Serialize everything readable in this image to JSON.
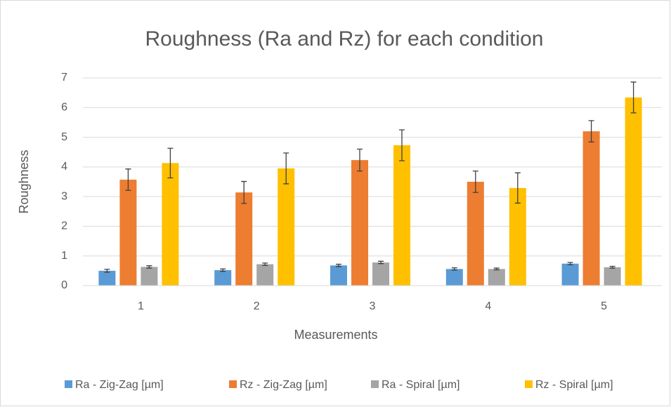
{
  "chart_data": {
    "type": "bar",
    "title": "Roughness (Ra and Rz) for each condition",
    "x_label": "Measurements",
    "y_label": "Roughness",
    "categories": [
      "1",
      "2",
      "3",
      "4",
      "5"
    ],
    "series": [
      {
        "name": "Ra - Zig-Zag [µm]",
        "color": "#5b9bd5",
        "values": [
          0.5,
          0.52,
          0.68,
          0.56,
          0.74
        ],
        "errors": [
          0.05,
          0.04,
          0.04,
          0.04,
          0.04
        ]
      },
      {
        "name": "Rz - Zig-Zag [µm]",
        "color": "#ed7d31",
        "values": [
          3.57,
          3.14,
          4.23,
          3.5,
          5.2
        ],
        "errors": [
          0.36,
          0.37,
          0.37,
          0.36,
          0.36
        ]
      },
      {
        "name": "Ra - Spiral [µm]",
        "color": "#a5a5a5",
        "values": [
          0.63,
          0.72,
          0.78,
          0.56,
          0.62
        ],
        "errors": [
          0.04,
          0.04,
          0.04,
          0.03,
          0.03
        ]
      },
      {
        "name": "Rz - Spiral [µm]",
        "color": "#ffc000",
        "values": [
          4.13,
          3.95,
          4.73,
          3.29,
          6.34
        ],
        "errors": [
          0.5,
          0.52,
          0.52,
          0.51,
          0.52
        ]
      }
    ],
    "ylim": [
      0,
      7
    ],
    "yticks": [
      0,
      1,
      2,
      3,
      4,
      5,
      6,
      7
    ],
    "grid": true,
    "legend": "bottom"
  }
}
